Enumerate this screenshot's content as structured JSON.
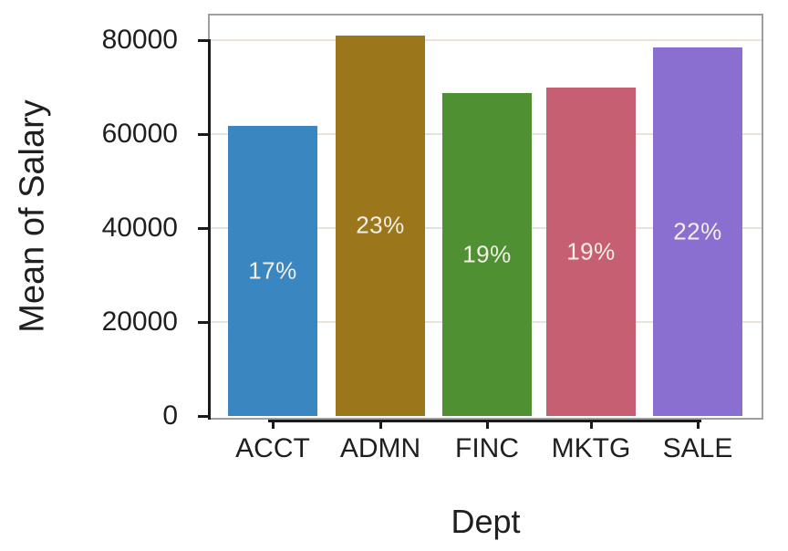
{
  "chart_data": {
    "type": "bar",
    "title": "",
    "xlabel": "Dept",
    "ylabel": "Mean of Salary",
    "categories": [
      "ACCT",
      "ADMN",
      "FINC",
      "MKTG",
      "SALE"
    ],
    "values": [
      61800,
      81000,
      68800,
      70000,
      78500
    ],
    "bar_labels": [
      "17%",
      "23%",
      "19%",
      "19%",
      "22%"
    ],
    "bar_colors": [
      "#3a86c1",
      "#9c761b",
      "#4f9132",
      "#c65f72",
      "#8a6fd1"
    ],
    "ylim": [
      0,
      80000
    ],
    "yticks": [
      0,
      20000,
      40000,
      60000,
      80000
    ],
    "ytick_labels": [
      "0",
      "20000",
      "40000",
      "60000",
      "80000"
    ],
    "grid": "horizontal",
    "legend": "none",
    "grid_color": "#e8e2d8",
    "axis_color": "#1a1a1a",
    "panel_border_color": "#9e9e9e",
    "text_color": "#1f1f1f",
    "bar_label_color": "#f2efe7"
  }
}
